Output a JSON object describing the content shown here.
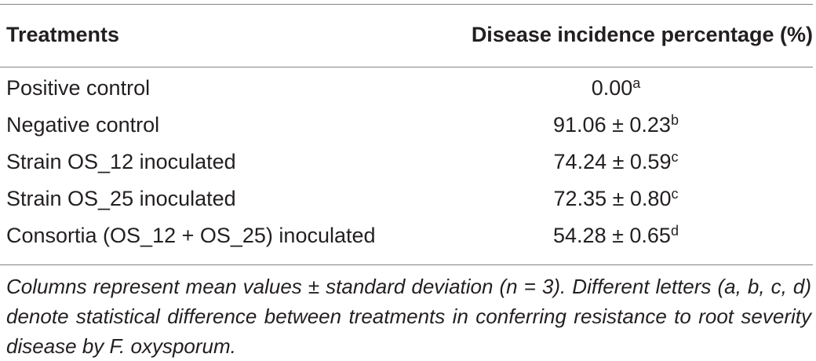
{
  "table": {
    "headers": {
      "treatments": "Treatments",
      "incidence": "Disease incidence percentage (%)"
    },
    "rows": [
      {
        "treatment": "Positive control",
        "value": "0.00",
        "letter": "a"
      },
      {
        "treatment": "Negative control",
        "value": "91.06 ± 0.23",
        "letter": "b"
      },
      {
        "treatment": "Strain OS_12 inoculated",
        "value": "74.24 ± 0.59",
        "letter": "c"
      },
      {
        "treatment": "Strain OS_25 inoculated",
        "value": "72.35 ± 0.80",
        "letter": "c"
      },
      {
        "treatment": "Consortia (OS_12 + OS_25) inoculated",
        "value": "54.28 ± 0.65",
        "letter": "d"
      }
    ],
    "footnote": "Columns represent mean values ± standard deviation (n = 3). Different letters (a, b, c, d) denote statistical difference between treatments in conferring resistance to root severity disease by F. oxysporum."
  }
}
